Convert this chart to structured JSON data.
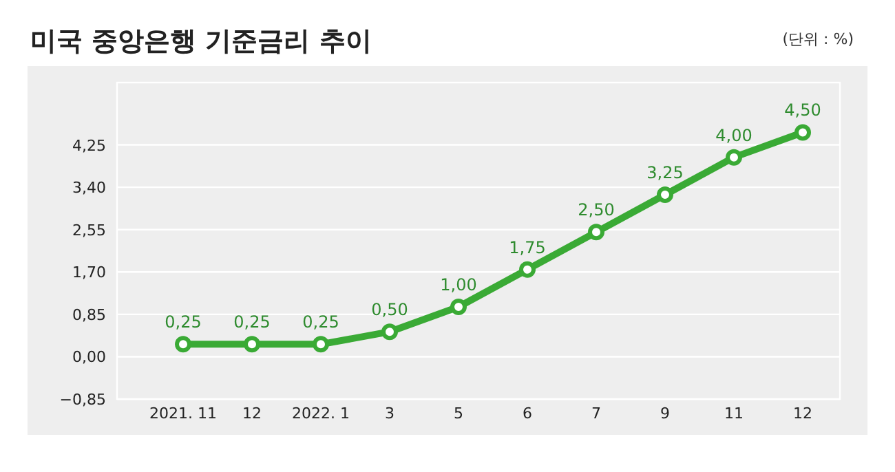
{
  "chart_data": {
    "type": "line",
    "title": "미국 중앙은행 기준금리 추이",
    "annotations": [
      "(단위 : %)"
    ],
    "categories": [
      "2021. 11",
      "12",
      "2022. 1",
      "3",
      "5",
      "6",
      "7",
      "9",
      "11",
      "12"
    ],
    "series": [
      {
        "color": "#3aaa35",
        "values": [
          0.25,
          0.25,
          0.25,
          0.5,
          1.0,
          1.75,
          2.5,
          3.25,
          4.0,
          4.5
        ],
        "value_labels": [
          "0,25",
          "0,25",
          "0,25",
          "0,50",
          "1,00",
          "1,75",
          "2,50",
          "3,25",
          "4,00",
          "4,50"
        ]
      }
    ],
    "ylim": [
      -0.85,
      5.5
    ],
    "yticks": [
      {
        "value": -0.85,
        "label": "−0,85"
      },
      {
        "value": 0,
        "label": "0,00"
      },
      {
        "value": 0.85,
        "label": "0,85"
      },
      {
        "value": 1.7,
        "label": "1,70"
      },
      {
        "value": 2.55,
        "label": "2,55"
      },
      {
        "value": 3.4,
        "label": "3,40"
      },
      {
        "value": 4.25,
        "label": "4,25"
      }
    ],
    "grid": "y",
    "marker": "circle",
    "line_style": "solid"
  }
}
